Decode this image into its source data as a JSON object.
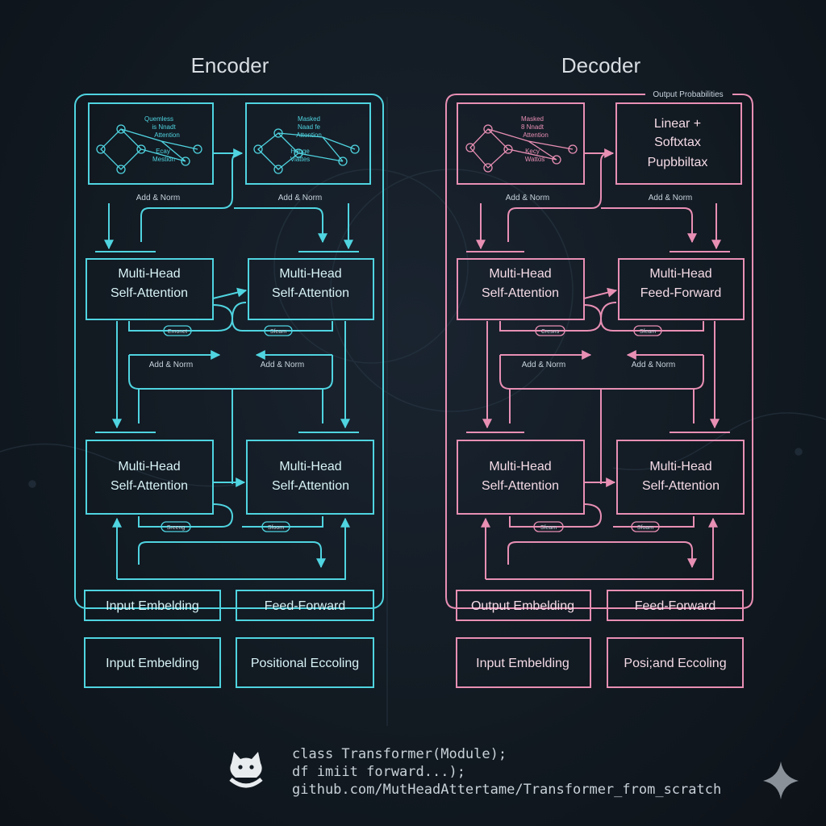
{
  "colors": {
    "encoder": "#4fd4e0",
    "decoder": "#e88fb4",
    "title": "#d8dde2",
    "label": "#c7d4de",
    "code": "#c8d0d8",
    "background": "#121a22"
  },
  "encoder": {
    "title": "Encoder",
    "mini_left": [
      "Quemless",
      "is Nnadt",
      "Attention",
      "Ecay",
      "Mestion"
    ],
    "mini_right": [
      "Masked",
      "Naad fe",
      "Attention",
      "Hauge",
      "Viattes"
    ],
    "add_norm_top_left": "Add & Norm",
    "add_norm_top_right": "Add & Norm",
    "block1_left": [
      "Multi-Head",
      "Self-Attention"
    ],
    "block1_right": [
      "Multi-Head",
      "Self-Attention"
    ],
    "pill1_left": "Emonet",
    "pill1_right": "Sfeam",
    "add_norm_mid_left": "Add & Norm",
    "add_norm_mid_right": "Add & Norm",
    "block2_left": [
      "Multi-Head",
      "Self-Attention"
    ],
    "block2_right": [
      "Multi-Head",
      "Self-Attention"
    ],
    "pill2_left": "Sreeng",
    "pill2_right": "Sfoom",
    "bottom1_left": "Input Embelding",
    "bottom1_right": "Feed-Forward",
    "bottom2_left": "Input Embelding",
    "bottom2_right": "Positional Eccoling"
  },
  "decoder": {
    "title": "Decoder",
    "output_caption": "Output Probabilities",
    "mini_left": [
      "Masked",
      "8 Nnadt",
      "Attention",
      "Kecy",
      "Wattos"
    ],
    "linear_box": [
      "Linear +",
      "Softxtax",
      "Pupbbiltax"
    ],
    "add_norm_top_left": "Add & Norm",
    "add_norm_top_right": "Add & Norm",
    "block1_left": [
      "Multi-Head",
      "Self-Attention"
    ],
    "block1_right": [
      "Multi-Head",
      "Feed-Forward"
    ],
    "pill1_left": "Cresns",
    "pill1_right": "Sfeam",
    "add_norm_mid_left": "Add & Norm",
    "add_norm_mid_right": "Add & Norm",
    "block2_left": [
      "Multi-Head",
      "Self-Attention"
    ],
    "block2_right": [
      "Multi-Head",
      "Self-Attention"
    ],
    "pill2_left": "Sfeam",
    "pill2_right": "Sfoam",
    "bottom1_left": "Output Embelding",
    "bottom1_right": "Feed-Forward",
    "bottom2_left": "Input Embelding",
    "bottom2_right": "Posi;and Eccoling"
  },
  "footer": {
    "code_lines": [
      "class Transformer(Module);",
      "df imiit forward...);",
      "github.com/MutHeadAttertame/Transformer_from_scratch"
    ],
    "logo_icon": "cat-logo-icon",
    "sparkle_icon": "sparkle-icon"
  }
}
